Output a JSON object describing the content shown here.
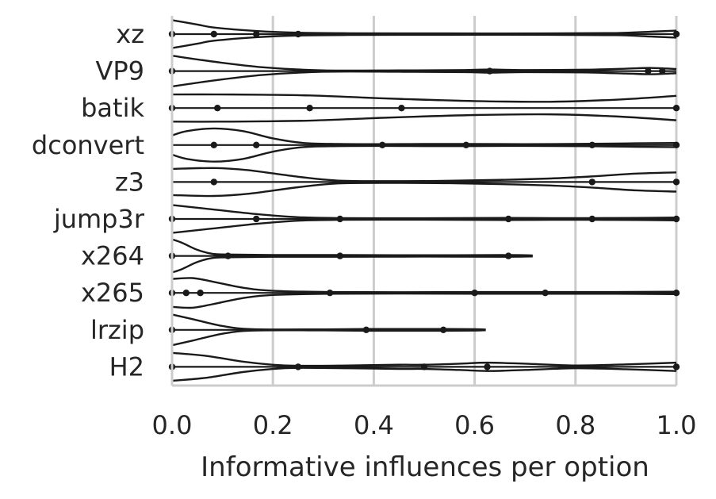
{
  "chart_data": {
    "type": "violin",
    "title": "",
    "xlabel": "Informative influences per option",
    "ylabel": "",
    "xlim": [
      0.0,
      1.0
    ],
    "xticks": [
      "0.0",
      "0.2",
      "0.4",
      "0.6",
      "0.8",
      "1.0"
    ],
    "xtick_values": [
      0.0,
      0.2,
      0.4,
      0.6,
      0.8,
      1.0
    ],
    "grid": "vertical",
    "categories": [
      "xz",
      "VP9",
      "batik",
      "dconvert",
      "z3",
      "jump3r",
      "x264",
      "x265",
      "lrzip",
      "H2"
    ],
    "series": [
      {
        "category": "xz",
        "points": [
          0.0,
          0.083,
          0.167,
          0.25,
          1.0
        ],
        "density": [
          [
            0.0,
            0.8
          ],
          [
            0.05,
            0.55
          ],
          [
            0.083,
            0.38
          ],
          [
            0.167,
            0.18
          ],
          [
            0.25,
            0.08
          ],
          [
            0.35,
            0.05
          ],
          [
            0.55,
            0.04
          ],
          [
            0.75,
            0.04
          ],
          [
            0.88,
            0.06
          ],
          [
            0.95,
            0.14
          ],
          [
            1.0,
            0.2
          ]
        ]
      },
      {
        "category": "VP9",
        "points": [
          0.0,
          0.63,
          0.944,
          0.972
        ],
        "density": [
          [
            0.0,
            0.88
          ],
          [
            0.08,
            0.55
          ],
          [
            0.18,
            0.22
          ],
          [
            0.3,
            0.04
          ],
          [
            0.45,
            0.04
          ],
          [
            0.58,
            0.06
          ],
          [
            0.63,
            0.09
          ],
          [
            0.7,
            0.06
          ],
          [
            0.82,
            0.08
          ],
          [
            0.9,
            0.14
          ],
          [
            0.95,
            0.18
          ],
          [
            1.0,
            0.12
          ]
        ]
      },
      {
        "category": "batik",
        "points": [
          0.0,
          0.09,
          0.273,
          0.455,
          1.0
        ],
        "density": [
          [
            0.0,
            0.78
          ],
          [
            0.09,
            0.78
          ],
          [
            0.18,
            0.76
          ],
          [
            0.273,
            0.72
          ],
          [
            0.38,
            0.6
          ],
          [
            0.455,
            0.52
          ],
          [
            0.6,
            0.4
          ],
          [
            0.75,
            0.36
          ],
          [
            0.88,
            0.48
          ],
          [
            1.0,
            0.7
          ]
        ]
      },
      {
        "category": "dconvert",
        "points": [
          0.083,
          0.167,
          0.417,
          0.583,
          0.833,
          1.0
        ],
        "density": [
          [
            0.0,
            0.55
          ],
          [
            0.03,
            0.8
          ],
          [
            0.083,
            0.95
          ],
          [
            0.14,
            0.8
          ],
          [
            0.2,
            0.38
          ],
          [
            0.26,
            0.12
          ],
          [
            0.33,
            0.06
          ],
          [
            0.417,
            0.05
          ],
          [
            0.5,
            0.06
          ],
          [
            0.583,
            0.06
          ],
          [
            0.7,
            0.05
          ],
          [
            0.833,
            0.07
          ],
          [
            0.92,
            0.1
          ],
          [
            1.0,
            0.12
          ]
        ]
      },
      {
        "category": "z3",
        "points": [
          0.083,
          0.833,
          1.0
        ],
        "density": [
          [
            0.0,
            0.75
          ],
          [
            0.083,
            0.8
          ],
          [
            0.15,
            0.68
          ],
          [
            0.25,
            0.3
          ],
          [
            0.33,
            0.08
          ],
          [
            0.45,
            0.05
          ],
          [
            0.55,
            0.07
          ],
          [
            0.65,
            0.12
          ],
          [
            0.75,
            0.2
          ],
          [
            0.833,
            0.32
          ],
          [
            0.92,
            0.48
          ],
          [
            1.0,
            0.55
          ]
        ]
      },
      {
        "category": "jump3r",
        "points": [
          0.0,
          0.167,
          0.333,
          0.667,
          0.833,
          1.0
        ],
        "density": [
          [
            0.0,
            0.8
          ],
          [
            0.08,
            0.55
          ],
          [
            0.167,
            0.28
          ],
          [
            0.25,
            0.1
          ],
          [
            0.333,
            0.05
          ],
          [
            0.45,
            0.04
          ],
          [
            0.55,
            0.05
          ],
          [
            0.667,
            0.06
          ],
          [
            0.75,
            0.05
          ],
          [
            0.833,
            0.05
          ],
          [
            0.92,
            0.06
          ],
          [
            1.0,
            0.08
          ]
        ]
      },
      {
        "category": "x264",
        "points": [
          0.0,
          0.111,
          0.333,
          0.667
        ],
        "density": [
          [
            0.0,
            0.95
          ],
          [
            0.02,
            0.75
          ],
          [
            0.05,
            0.35
          ],
          [
            0.08,
            0.12
          ],
          [
            0.111,
            0.08
          ],
          [
            0.2,
            0.05
          ],
          [
            0.333,
            0.05
          ],
          [
            0.5,
            0.04
          ],
          [
            0.667,
            0.05
          ],
          [
            0.715,
            0.03
          ]
        ]
      },
      {
        "category": "x265",
        "points": [
          0.0,
          0.028,
          0.056,
          0.313,
          0.6,
          0.74,
          1.0
        ],
        "density": [
          [
            0.0,
            0.8
          ],
          [
            0.04,
            0.85
          ],
          [
            0.08,
            0.65
          ],
          [
            0.14,
            0.3
          ],
          [
            0.2,
            0.12
          ],
          [
            0.313,
            0.05
          ],
          [
            0.45,
            0.04
          ],
          [
            0.6,
            0.05
          ],
          [
            0.74,
            0.05
          ],
          [
            0.88,
            0.05
          ],
          [
            1.0,
            0.07
          ]
        ]
      },
      {
        "category": "lrzip",
        "points": [
          0.0,
          0.385,
          0.538
        ],
        "density": [
          [
            0.0,
            0.88
          ],
          [
            0.04,
            0.62
          ],
          [
            0.1,
            0.22
          ],
          [
            0.16,
            0.04
          ],
          [
            0.3,
            0.03
          ],
          [
            0.385,
            0.05
          ],
          [
            0.46,
            0.05
          ],
          [
            0.538,
            0.05
          ],
          [
            0.6,
            0.04
          ],
          [
            0.622,
            0.02
          ]
        ]
      },
      {
        "category": "H2",
        "points": [
          0.0,
          0.25,
          0.5,
          0.625,
          1.0
        ],
        "density": [
          [
            0.0,
            0.8
          ],
          [
            0.07,
            0.62
          ],
          [
            0.14,
            0.3
          ],
          [
            0.2,
            0.12
          ],
          [
            0.25,
            0.06
          ],
          [
            0.35,
            0.08
          ],
          [
            0.45,
            0.12
          ],
          [
            0.5,
            0.12
          ],
          [
            0.57,
            0.18
          ],
          [
            0.625,
            0.24
          ],
          [
            0.7,
            0.18
          ],
          [
            0.8,
            0.08
          ],
          [
            0.9,
            0.14
          ],
          [
            1.0,
            0.24
          ]
        ]
      }
    ]
  }
}
